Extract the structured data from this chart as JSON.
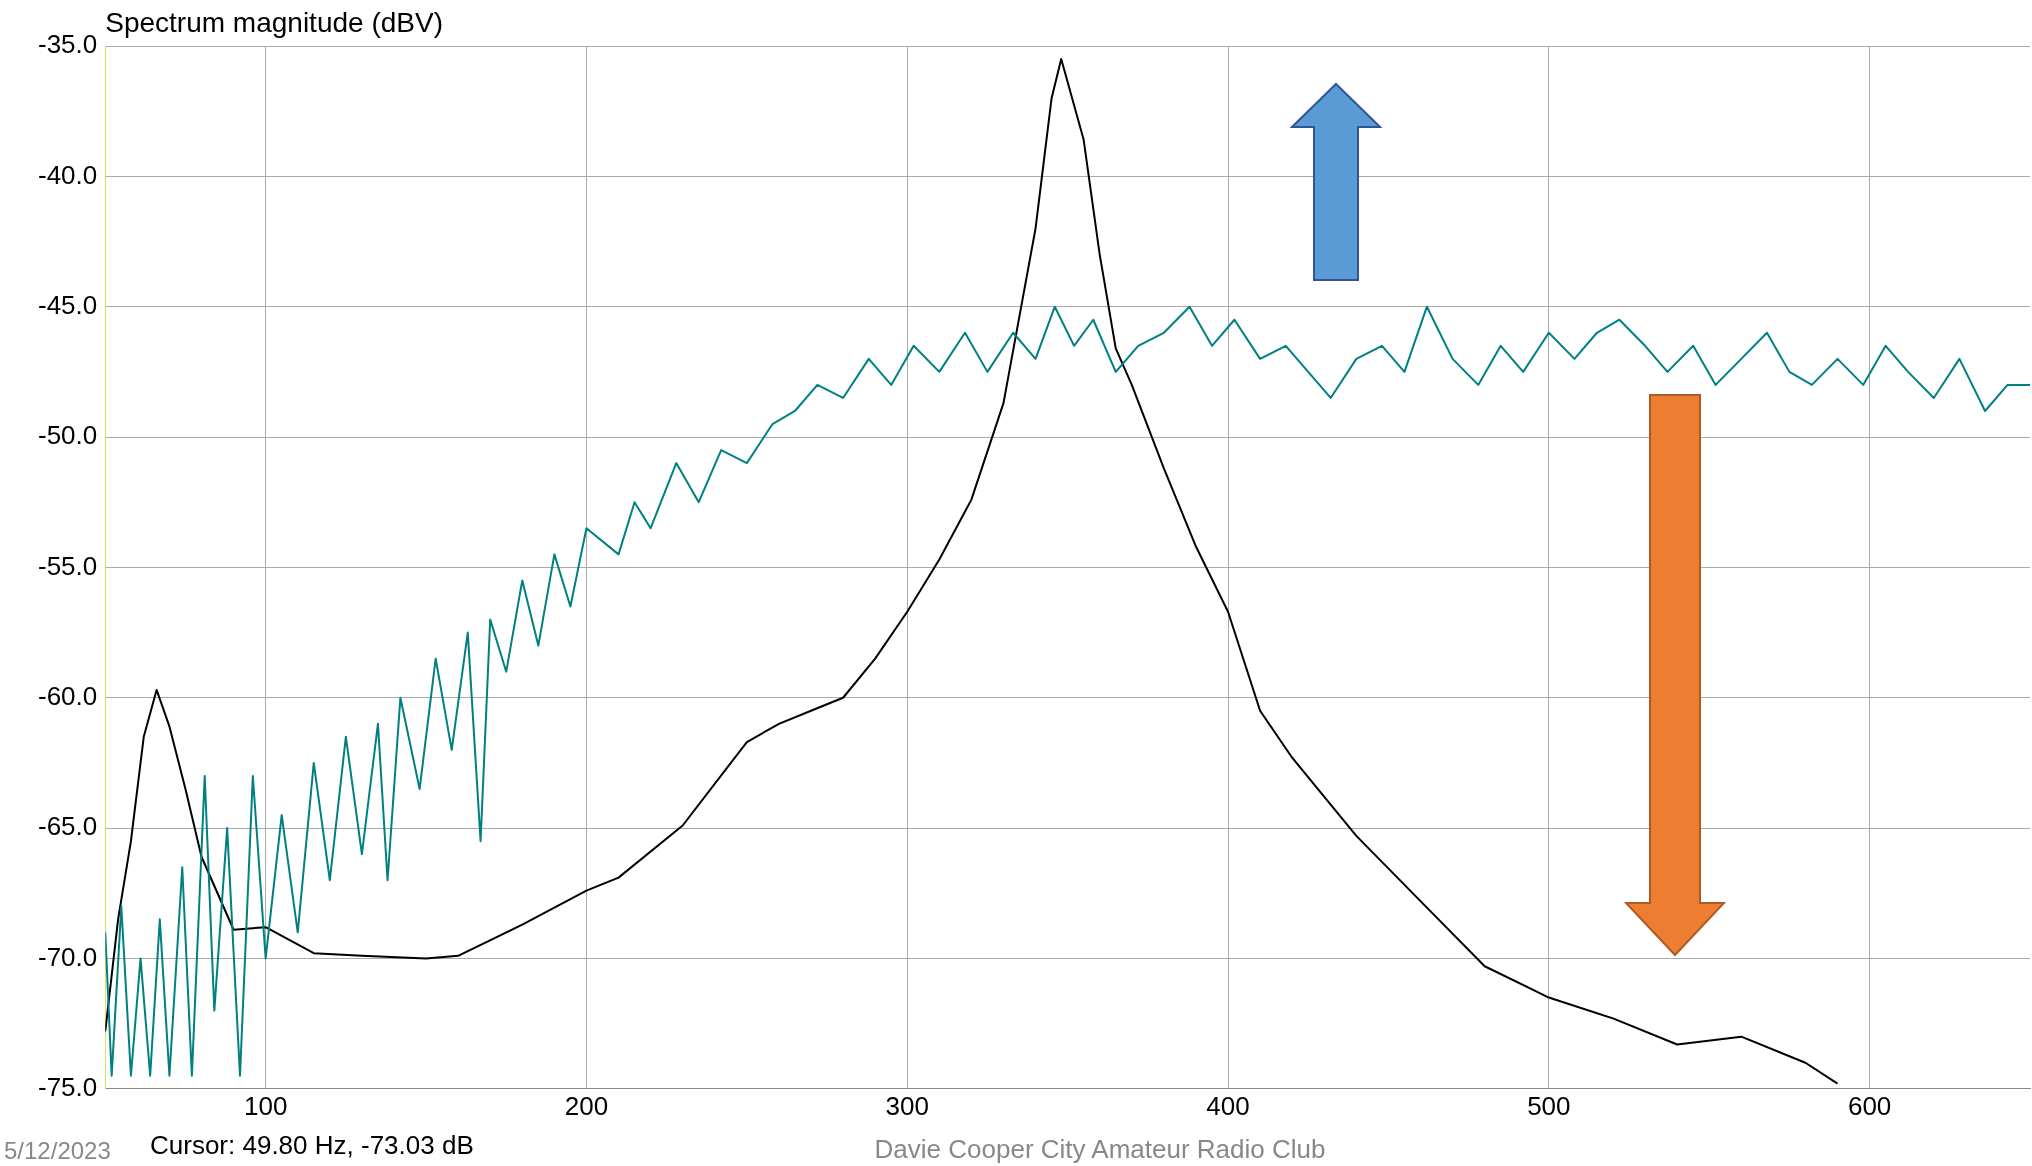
{
  "chart_data": {
    "type": "line",
    "ylabel": "Spectrum magnitude (dBV)",
    "xlim": [
      50,
      650
    ],
    "xticks": [
      100,
      200,
      300,
      400,
      500,
      600
    ],
    "ylim": [
      -75,
      -35
    ],
    "yticks": [
      {
        "value": -75,
        "label": "-75.0"
      },
      {
        "value": -70,
        "label": "-70.0"
      },
      {
        "value": -65,
        "label": "-65.0"
      },
      {
        "value": -60,
        "label": "-60.0"
      },
      {
        "value": -55,
        "label": "-55.0"
      },
      {
        "value": -50,
        "label": "-50.0"
      },
      {
        "value": -45,
        "label": "-45.0"
      },
      {
        "value": -40,
        "label": "-40.0"
      },
      {
        "value": -35,
        "label": "-35.0"
      }
    ],
    "grid": true,
    "legend": false,
    "marker": "none",
    "line_style": "solid",
    "annotations": [
      "5/12/2023",
      "Cursor: 49.80 Hz, -73.03 dB",
      "Davie Cooper City Amateur Radio Club"
    ],
    "series": [
      {
        "color": "#008080",
        "x": [
          50,
          52,
          55,
          58,
          61,
          64,
          67,
          70,
          74,
          77,
          81,
          84,
          88,
          92,
          96,
          100,
          105,
          110,
          115,
          120,
          125,
          130,
          135,
          138,
          142,
          148,
          153,
          158,
          163,
          167,
          170,
          175,
          180,
          185,
          190,
          195,
          200,
          210,
          215,
          220,
          228,
          235,
          242,
          250,
          258,
          265,
          272,
          280,
          288,
          295,
          302,
          310,
          318,
          325,
          333,
          340,
          346,
          352,
          358,
          365,
          372,
          380,
          388,
          395,
          402,
          410,
          418,
          425,
          432,
          440,
          448,
          455,
          462,
          470,
          478,
          485,
          492,
          500,
          508,
          515,
          522,
          530,
          537,
          545,
          552,
          560,
          568,
          575,
          582,
          590,
          598,
          605,
          612,
          620,
          628,
          636,
          643,
          650
        ],
        "values": [
          -69,
          -74.5,
          -68,
          -74.5,
          -70,
          -74.5,
          -68.5,
          -74.5,
          -66.5,
          -74.5,
          -63,
          -72,
          -65,
          -74.5,
          -63,
          -70,
          -64.5,
          -69,
          -62.5,
          -67,
          -61.5,
          -66,
          -61,
          -67,
          -60,
          -63.5,
          -58.5,
          -62,
          -57.5,
          -65.5,
          -57,
          -59,
          -55.5,
          -58,
          -54.5,
          -56.5,
          -53.5,
          -54.5,
          -52.5,
          -53.5,
          -51,
          -52.5,
          -50.5,
          -51,
          -49.5,
          -49,
          -48,
          -48.5,
          -47,
          -48,
          -46.5,
          -47.5,
          -46,
          -47.5,
          -46,
          -47,
          -45,
          -46.5,
          -45.5,
          -47.5,
          -46.5,
          -46,
          -45,
          -46.5,
          -45.5,
          -47,
          -46.5,
          -47.5,
          -48.5,
          -47,
          -46.5,
          -47.5,
          -45,
          -47,
          -48,
          -46.5,
          -47.5,
          -46,
          -47,
          -46,
          -45.5,
          -46.5,
          -47.5,
          -46.5,
          -48,
          -47,
          -46,
          -47.5,
          -48,
          -47,
          -48,
          -46.5,
          -47.5,
          -48.5,
          -47,
          -49,
          -48,
          -48
        ]
      },
      {
        "color": "#000000",
        "x": [
          50,
          54,
          58,
          62,
          66,
          70,
          75,
          80,
          90,
          100,
          115,
          130,
          150,
          160,
          180,
          200,
          210,
          230,
          250,
          260,
          270,
          280,
          290,
          300,
          310,
          320,
          330,
          340,
          345,
          348,
          355,
          360,
          365,
          370,
          380,
          390,
          400,
          410,
          420,
          440,
          460,
          480,
          500,
          520,
          540,
          560,
          580,
          590
        ],
        "values": [
          -72.8,
          -68.5,
          -65.5,
          -61.5,
          -59.7,
          -61.1,
          -63.5,
          -66.1,
          -68.9,
          -68.8,
          -69.8,
          -69.9,
          -70,
          -69.9,
          -68.7,
          -67.4,
          -66.9,
          -64.9,
          -61.7,
          -61,
          -60.5,
          -60,
          -58.5,
          -56.7,
          -54.7,
          -52.4,
          -48.7,
          -42,
          -37,
          -35.5,
          -38.6,
          -43,
          -46.6,
          -48,
          -51.2,
          -54.2,
          -56.7,
          -60.5,
          -62.3,
          -65.3,
          -67.8,
          -70.3,
          -71.5,
          -72.3,
          -73.3,
          -73,
          -74,
          -74.8
        ]
      }
    ]
  }
}
